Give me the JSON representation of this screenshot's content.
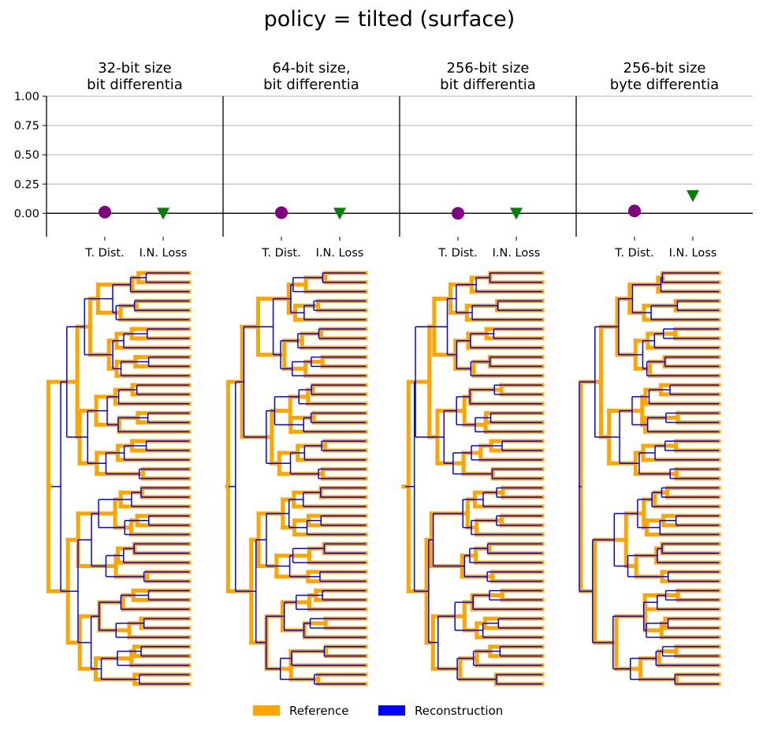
{
  "figure": {
    "title": "policy = tilted (surface)"
  },
  "chart_data": [
    {
      "type": "scatter",
      "title": [
        "32-bit size",
        "bit differentia"
      ],
      "categories": [
        "T. Dist.",
        "I.N. Loss"
      ],
      "values": [
        0.01,
        0.0
      ],
      "yticks": [
        "1.00",
        "0.75",
        "0.50",
        "0.25",
        "0.00"
      ],
      "ylim": [
        -0.2,
        1.0
      ],
      "grid": true
    },
    {
      "type": "scatter",
      "title": [
        "64-bit size,",
        "bit differentia"
      ],
      "categories": [
        "T. Dist.",
        "I.N. Loss"
      ],
      "values": [
        0.005,
        0.0
      ],
      "ylim": [
        -0.2,
        1.0
      ],
      "grid": true
    },
    {
      "type": "scatter",
      "title": [
        "256-bit size",
        "bit differentia"
      ],
      "categories": [
        "T. Dist.",
        "I.N. Loss"
      ],
      "values": [
        0.0,
        0.0
      ],
      "ylim": [
        -0.2,
        1.0
      ],
      "grid": true
    },
    {
      "type": "scatter",
      "title": [
        "256-bit size",
        "byte differentia"
      ],
      "categories": [
        "T. Dist.",
        "I.N. Loss"
      ],
      "values": [
        0.02,
        0.15
      ],
      "ylim": [
        -0.2,
        1.0
      ],
      "grid": true
    }
  ],
  "markers": {
    "tdist": {
      "shape": "circle",
      "color": "#800080"
    },
    "inloss": {
      "shape": "triangle-down",
      "color": "#008000"
    }
  },
  "legend": {
    "placement": "bottom-center",
    "items": [
      {
        "label": "Reference",
        "color": "#FFA500"
      },
      {
        "label": "Reconstruction",
        "color": "#0000FF"
      }
    ]
  },
  "trees": {
    "leaf_count": 45,
    "reference_color": "#FFA500",
    "reconstruction_color": "#0000FF"
  }
}
